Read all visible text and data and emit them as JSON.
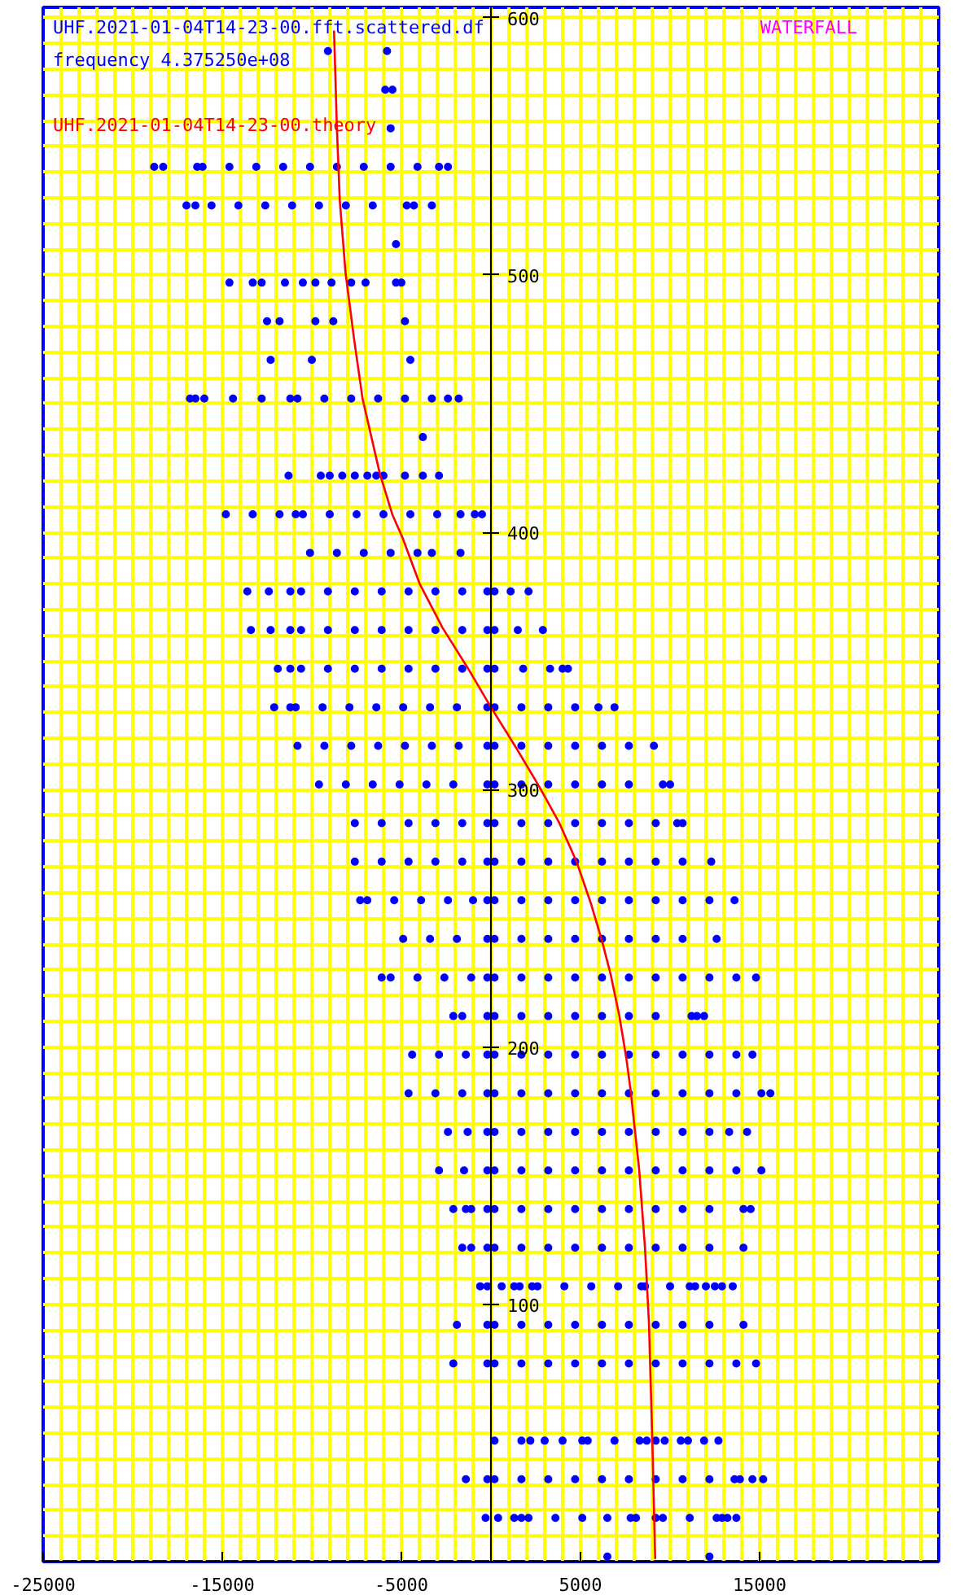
{
  "chart_data": {
    "type": "scatter",
    "title": "WATERFALL",
    "annotations": [
      "frequency 4.375250e+08"
    ],
    "xlim": [
      -25000,
      25000
    ],
    "ylim": [
      0,
      604
    ],
    "xticks": [
      -25000,
      -15000,
      -5000,
      5000,
      15000
    ],
    "yticks": [
      100,
      200,
      300,
      400,
      500,
      600
    ],
    "grid": true,
    "legend": "top left",
    "marker": "circle",
    "series": [
      {
        "name": "UHF.2021-01-04T14-23-00.fft.scattered.df",
        "color": "#0000ff",
        "x": [
          -9100,
          -5800
        ],
        "values": [
          587,
          587
        ]
      },
      {
        "color": "#0000ff",
        "x": [
          -5900,
          -5500
        ],
        "values": [
          572,
          572
        ]
      },
      {
        "color": "#0000ff",
        "x": [
          -5600
        ],
        "values": [
          557
        ]
      },
      {
        "color": "#0000ff",
        "x": [
          -18800,
          -18300,
          -16400,
          -16100,
          -14600,
          -13100,
          -11600,
          -10100,
          -8600,
          -7100,
          -5600,
          -4100,
          -2900,
          -2400
        ],
        "values": [
          542,
          542,
          542,
          542,
          542,
          542,
          542,
          542,
          542,
          542,
          542,
          542,
          542,
          542
        ]
      },
      {
        "color": "#0000ff",
        "x": [
          -17000,
          -16500,
          -15600,
          -14100,
          -12600,
          -11100,
          -9600,
          -8100,
          -6600,
          -4700,
          -4300,
          -3300
        ],
        "values": [
          527,
          527,
          527,
          527,
          527,
          527,
          527,
          527,
          527,
          527,
          527,
          527
        ]
      },
      {
        "color": "#0000ff",
        "x": [
          -5300
        ],
        "values": [
          512
        ]
      },
      {
        "color": "#0000ff",
        "x": [
          -14600,
          -13300,
          -12800,
          -11500,
          -10500,
          -9800,
          -8900,
          -7800,
          -7000,
          -5300,
          -5000
        ],
        "values": [
          497,
          497,
          497,
          497,
          497,
          497,
          497,
          497,
          497,
          497,
          497
        ]
      },
      {
        "color": "#0000ff",
        "x": [
          -12500,
          -11800,
          -9800,
          -8800,
          -4800
        ],
        "values": [
          482,
          482,
          482,
          482,
          482
        ]
      },
      {
        "color": "#0000ff",
        "x": [
          -12300,
          -10000,
          -4500
        ],
        "values": [
          467,
          467,
          467
        ]
      },
      {
        "color": "#0000ff",
        "x": [
          -16800,
          -16500,
          -16000,
          -14400,
          -12800,
          -11200,
          -10800,
          -9300,
          -7800,
          -6300,
          -4800,
          -3300,
          -2400,
          -1800
        ],
        "values": [
          452,
          452,
          452,
          452,
          452,
          452,
          452,
          452,
          452,
          452,
          452,
          452,
          452,
          452
        ]
      },
      {
        "color": "#0000ff",
        "x": [
          -3800
        ],
        "values": [
          437
        ]
      },
      {
        "color": "#0000ff",
        "x": [
          -11300,
          -9500,
          -9000,
          -8300,
          -7600,
          -6900,
          -6400,
          -6000,
          -4800,
          -3800,
          -2900
        ],
        "values": [
          422,
          422,
          422,
          422,
          422,
          422,
          422,
          422,
          422,
          422,
          422
        ]
      },
      {
        "color": "#0000ff",
        "x": [
          -14800,
          -13300,
          -11800,
          -10900,
          -10500,
          -9000,
          -7500,
          -6000,
          -4500,
          -3000,
          -1700,
          -900,
          -500
        ],
        "values": [
          407,
          407,
          407,
          407,
          407,
          407,
          407,
          407,
          407,
          407,
          407,
          407,
          407
        ]
      },
      {
        "color": "#0000ff",
        "x": [
          -10100,
          -8600,
          -7100,
          -5600,
          -4100,
          -3300,
          -1700
        ],
        "values": [
          392,
          392,
          392,
          392,
          392,
          392,
          392
        ]
      },
      {
        "color": "#0000ff",
        "x": [
          -13600,
          -12400,
          -11200,
          -10600,
          -9100,
          -7600,
          -6100,
          -4600,
          -3100,
          -1600,
          -200,
          200,
          1100,
          2100
        ],
        "values": [
          377,
          377,
          377,
          377,
          377,
          377,
          377,
          377,
          377,
          377,
          377,
          377,
          377,
          377
        ]
      },
      {
        "color": "#0000ff",
        "x": [
          -13400,
          -12300,
          -11200,
          -10600,
          -9100,
          -7600,
          -6100,
          -4600,
          -3100,
          -1600,
          -200,
          200,
          1500,
          2900
        ],
        "values": [
          362,
          362,
          362,
          362,
          362,
          362,
          362,
          362,
          362,
          362,
          362,
          362,
          362,
          362
        ]
      },
      {
        "color": "#0000ff",
        "x": [
          -11900,
          -11200,
          -10600,
          -9100,
          -7600,
          -6100,
          -4600,
          -3100,
          -1600,
          -200,
          200,
          1800,
          3300,
          4000,
          4300
        ],
        "values": [
          347,
          347,
          347,
          347,
          347,
          347,
          347,
          347,
          347,
          347,
          347,
          347,
          347,
          347,
          347
        ]
      },
      {
        "color": "#0000ff",
        "x": [
          -12100,
          -11200,
          -10900,
          -9400,
          -7900,
          -6400,
          -4900,
          -3400,
          -1900,
          -200,
          200,
          1700,
          3200,
          4700,
          6000,
          6900
        ],
        "values": [
          332,
          332,
          332,
          332,
          332,
          332,
          332,
          332,
          332,
          332,
          332,
          332,
          332,
          332,
          332,
          332
        ]
      },
      {
        "color": "#0000ff",
        "x": [
          -10800,
          -9300,
          -7800,
          -6300,
          -4800,
          -3300,
          -1800,
          -200,
          200,
          1700,
          3200,
          4700,
          6200,
          7700,
          9100
        ],
        "values": [
          317,
          317,
          317,
          317,
          317,
          317,
          317,
          317,
          317,
          317,
          317,
          317,
          317,
          317,
          317
        ]
      },
      {
        "color": "#0000ff",
        "x": [
          -9600,
          -8100,
          -6600,
          -5100,
          -3600,
          -2100,
          -200,
          200,
          1700,
          3200,
          4700,
          6200,
          7700,
          9600,
          10000
        ],
        "values": [
          302,
          302,
          302,
          302,
          302,
          302,
          302,
          302,
          302,
          302,
          302,
          302,
          302,
          302,
          302
        ]
      },
      {
        "color": "#0000ff",
        "x": [
          -7600,
          -6100,
          -4600,
          -3100,
          -1600,
          -200,
          200,
          1700,
          3200,
          4700,
          6200,
          7700,
          9200,
          10400,
          10700
        ],
        "values": [
          287,
          287,
          287,
          287,
          287,
          287,
          287,
          287,
          287,
          287,
          287,
          287,
          287,
          287,
          287
        ]
      },
      {
        "color": "#0000ff",
        "x": [
          -7600,
          -6100,
          -4600,
          -3100,
          -1600,
          -200,
          200,
          1700,
          3200,
          4700,
          6200,
          7700,
          9200,
          10700,
          12300
        ],
        "values": [
          272,
          272,
          272,
          272,
          272,
          272,
          272,
          272,
          272,
          272,
          272,
          272,
          272,
          272,
          272
        ]
      },
      {
        "color": "#0000ff",
        "x": [
          -7300,
          -6900,
          -5400,
          -3900,
          -2400,
          -1000,
          -200,
          200,
          1700,
          3200,
          4700,
          6200,
          7700,
          9200,
          10700,
          12200,
          13600
        ],
        "values": [
          257,
          257,
          257,
          257,
          257,
          257,
          257,
          257,
          257,
          257,
          257,
          257,
          257,
          257,
          257,
          257,
          257
        ]
      },
      {
        "color": "#0000ff",
        "x": [
          -4900,
          -3400,
          -1900,
          -200,
          200,
          1700,
          3200,
          4700,
          6200,
          7700,
          9200,
          10700,
          12600
        ],
        "values": [
          242,
          242,
          242,
          242,
          242,
          242,
          242,
          242,
          242,
          242,
          242,
          242,
          242
        ]
      },
      {
        "color": "#0000ff",
        "x": [
          -6100,
          -5600,
          -4100,
          -2600,
          -1100,
          -200,
          200,
          1700,
          3200,
          4700,
          6200,
          7700,
          9200,
          10700,
          12200,
          13700,
          14800
        ],
        "values": [
          227,
          227,
          227,
          227,
          227,
          227,
          227,
          227,
          227,
          227,
          227,
          227,
          227,
          227,
          227,
          227,
          227
        ]
      },
      {
        "color": "#0000ff",
        "x": [
          -2100,
          -1600,
          -200,
          200,
          1700,
          3200,
          4700,
          6200,
          7700,
          9200,
          11200,
          11500,
          11900
        ],
        "values": [
          212,
          212,
          212,
          212,
          212,
          212,
          212,
          212,
          212,
          212,
          212,
          212,
          212
        ]
      },
      {
        "color": "#0000ff",
        "x": [
          -4400,
          -2900,
          -1400,
          -200,
          200,
          1700,
          3200,
          4700,
          6200,
          7700,
          9200,
          10700,
          12200,
          13700,
          14600
        ],
        "values": [
          197,
          197,
          197,
          197,
          197,
          197,
          197,
          197,
          197,
          197,
          197,
          197,
          197,
          197,
          197
        ]
      },
      {
        "color": "#0000ff",
        "x": [
          -4600,
          -3100,
          -1600,
          -200,
          200,
          1700,
          3200,
          4700,
          6200,
          7700,
          9200,
          10700,
          12200,
          13700,
          15100,
          15600
        ],
        "values": [
          182,
          182,
          182,
          182,
          182,
          182,
          182,
          182,
          182,
          182,
          182,
          182,
          182,
          182,
          182,
          182
        ]
      },
      {
        "color": "#0000ff",
        "x": [
          -2400,
          -1300,
          -200,
          200,
          1700,
          3200,
          4700,
          6200,
          7700,
          9200,
          10700,
          12200,
          13300,
          14300
        ],
        "values": [
          167,
          167,
          167,
          167,
          167,
          167,
          167,
          167,
          167,
          167,
          167,
          167,
          167,
          167
        ]
      },
      {
        "color": "#0000ff",
        "x": [
          -2900,
          -1500,
          -200,
          200,
          1700,
          3200,
          4700,
          6200,
          7700,
          9200,
          10700,
          12200,
          13700,
          15100
        ],
        "values": [
          152,
          152,
          152,
          152,
          152,
          152,
          152,
          152,
          152,
          152,
          152,
          152,
          152,
          152
        ]
      },
      {
        "color": "#0000ff",
        "x": [
          -2100,
          -1400,
          -1100,
          -200,
          200,
          1700,
          3200,
          4700,
          6200,
          7700,
          9200,
          10700,
          12200,
          14100,
          14500
        ],
        "values": [
          137,
          137,
          137,
          137,
          137,
          137,
          137,
          137,
          137,
          137,
          137,
          137,
          137,
          137,
          137
        ]
      },
      {
        "color": "#0000ff",
        "x": [
          -1600,
          -1100,
          -200,
          200,
          1700,
          3200,
          4700,
          6200,
          7700,
          9200,
          10700,
          12200,
          14100
        ],
        "values": [
          122,
          122,
          122,
          122,
          122,
          122,
          122,
          122,
          122,
          122,
          122,
          122,
          122
        ]
      },
      {
        "color": "#0000ff",
        "x": [
          -600,
          -200,
          600,
          1300,
          1600,
          2300,
          2600,
          4100,
          5600,
          7100,
          8400,
          8600,
          10000,
          11100,
          11400,
          12000,
          12500,
          12900,
          13500
        ],
        "values": [
          107,
          107,
          107,
          107,
          107,
          107,
          107,
          107,
          107,
          107,
          107,
          107,
          107,
          107,
          107,
          107,
          107,
          107,
          107
        ]
      },
      {
        "color": "#0000ff",
        "x": [
          -1900,
          -200,
          200,
          1700,
          3200,
          4700,
          6200,
          7700,
          9200,
          10700,
          12200,
          14100
        ],
        "values": [
          92,
          92,
          92,
          92,
          92,
          92,
          92,
          92,
          92,
          92,
          92,
          92
        ]
      },
      {
        "color": "#0000ff",
        "x": [
          -2100,
          -200,
          200,
          1700,
          3200,
          4700,
          6200,
          7700,
          9200,
          10700,
          12200,
          13700,
          14800
        ],
        "values": [
          77,
          77,
          77,
          77,
          77,
          77,
          77,
          77,
          77,
          77,
          77,
          77,
          77
        ]
      },
      {
        "color": "#0000ff",
        "x": [
          200,
          1700,
          2200,
          3000,
          4000,
          5100,
          5400,
          6900,
          8300,
          8700,
          9200,
          9700,
          10600,
          11000,
          11900,
          12700
        ],
        "values": [
          47,
          47,
          47,
          47,
          47,
          47,
          47,
          47,
          47,
          47,
          47,
          47,
          47,
          47,
          47,
          47
        ]
      },
      {
        "color": "#0000ff",
        "x": [
          -1400,
          -200,
          200,
          1700,
          3200,
          4700,
          6200,
          7700,
          9200,
          10700,
          12200,
          13600,
          13900,
          14600,
          15200
        ],
        "values": [
          32,
          32,
          32,
          32,
          32,
          32,
          32,
          32,
          32,
          32,
          32,
          32,
          32,
          32,
          32
        ]
      },
      {
        "color": "#0000ff",
        "x": [
          -300,
          400,
          1300,
          1700,
          2100,
          3600,
          5100,
          6500,
          7800,
          8100,
          9200,
          9600,
          11100,
          12600,
          12900,
          13200,
          13700
        ],
        "values": [
          17,
          17,
          17,
          17,
          17,
          17,
          17,
          17,
          17,
          17,
          17,
          17,
          17,
          17,
          17,
          17,
          17
        ]
      },
      {
        "color": "#0000ff",
        "x": [
          6500,
          12200
        ],
        "values": [
          2,
          2
        ]
      },
      {
        "name": "UHF.2021-01-04T14-23-00.theory",
        "type": "line",
        "marker": "none",
        "color": "#ff0000",
        "x": [
          -8760,
          -8600,
          -8440,
          -8120,
          -7640,
          -7170,
          -6210,
          -5510,
          -4940,
          -3980,
          -2710,
          -1270,
          0,
          1430,
          2710,
          3820,
          4780,
          5570,
          6210,
          6690,
          7170,
          7550,
          7800,
          8280,
          8600,
          8820,
          9010,
          9170
        ],
        "values": [
          595,
          557,
          529,
          501,
          475,
          452,
          423,
          407,
          398,
          380,
          363,
          347,
          332,
          316,
          301,
          287,
          272,
          256,
          241,
          228,
          212,
          196,
          183,
          152,
          122,
          93,
          47,
          1
        ]
      }
    ]
  }
}
